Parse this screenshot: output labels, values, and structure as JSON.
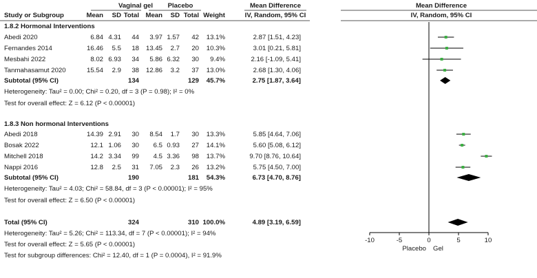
{
  "chart_data": {
    "type": "forest",
    "header": {
      "group_experimental": "Vaginal gel",
      "group_control": "Placebo",
      "study_col": "Study or Subgroup",
      "mean": "Mean",
      "sd": "SD",
      "total": "Total",
      "weight": "Weight",
      "md_title": "Mean Difference",
      "md_method": "IV, Random, 95% CI"
    },
    "subgroups": [
      {
        "title": "1.8.2 Hormonal Interventions",
        "studies": [
          {
            "name": "Abedi 2020",
            "e_mean": "6.84",
            "e_sd": "4.31",
            "e_total": "44",
            "c_mean": "3.97",
            "c_sd": "1.57",
            "c_total": "42",
            "weight": "13.1%",
            "ci_text": "2.87 [1.51, 4.23]",
            "md": 2.87,
            "lower": 1.51,
            "upper": 4.23
          },
          {
            "name": "Fernandes 2014",
            "e_mean": "16.46",
            "e_sd": "5.5",
            "e_total": "18",
            "c_mean": "13.45",
            "c_sd": "2.7",
            "c_total": "20",
            "weight": "10.3%",
            "ci_text": "3.01 [0.21, 5.81]",
            "md": 3.01,
            "lower": 0.21,
            "upper": 5.81
          },
          {
            "name": "Mesbahi 2022",
            "e_mean": "8.02",
            "e_sd": "6.93",
            "e_total": "34",
            "c_mean": "5.86",
            "c_sd": "6.32",
            "c_total": "30",
            "weight": "9.4%",
            "ci_text": "2.16 [-1.09, 5.41]",
            "md": 2.16,
            "lower": -1.09,
            "upper": 5.41
          },
          {
            "name": "Tanmahasamut 2020",
            "e_mean": "15.54",
            "e_sd": "2.9",
            "e_total": "38",
            "c_mean": "12.86",
            "c_sd": "3.2",
            "c_total": "37",
            "weight": "13.0%",
            "ci_text": "2.68 [1.30, 4.06]",
            "md": 2.68,
            "lower": 1.3,
            "upper": 4.06
          }
        ],
        "subtotal": {
          "label": "Subtotal (95% CI)",
          "e_total": "134",
          "c_total": "129",
          "weight": "45.7%",
          "ci_text": "2.75 [1.87, 3.64]",
          "md": 2.75,
          "lower": 1.87,
          "upper": 3.64
        },
        "heterogeneity": "Heterogeneity: Tau² = 0.00; Chi² = 0.20, df = 3 (P = 0.98); I² = 0%",
        "overall_effect": "Test for overall effect: Z = 6.12 (P < 0.00001)"
      },
      {
        "title": "1.8.3 Non hormonal Interventions",
        "studies": [
          {
            "name": "Abedi 2018",
            "e_mean": "14.39",
            "e_sd": "2.91",
            "e_total": "30",
            "c_mean": "8.54",
            "c_sd": "1.7",
            "c_total": "30",
            "weight": "13.3%",
            "ci_text": "5.85 [4.64, 7.06]",
            "md": 5.85,
            "lower": 4.64,
            "upper": 7.06
          },
          {
            "name": "Bosak 2022",
            "e_mean": "12.1",
            "e_sd": "1.06",
            "e_total": "30",
            "c_mean": "6.5",
            "c_sd": "0.93",
            "c_total": "27",
            "weight": "14.1%",
            "ci_text": "5.60 [5.08, 6.12]",
            "md": 5.6,
            "lower": 5.08,
            "upper": 6.12
          },
          {
            "name": "Mitchell 2018",
            "e_mean": "14.2",
            "e_sd": "3.34",
            "e_total": "99",
            "c_mean": "4.5",
            "c_sd": "3.36",
            "c_total": "98",
            "weight": "13.7%",
            "ci_text": "9.70 [8.76, 10.64]",
            "md": 9.7,
            "lower": 8.76,
            "upper": 10.64
          },
          {
            "name": "Nappi 2016",
            "e_mean": "12.8",
            "e_sd": "2.5",
            "e_total": "31",
            "c_mean": "7.05",
            "c_sd": "2.3",
            "c_total": "26",
            "weight": "13.2%",
            "ci_text": "5.75 [4.50, 7.00]",
            "md": 5.75,
            "lower": 4.5,
            "upper": 7.0
          }
        ],
        "subtotal": {
          "label": "Subtotal (95% CI)",
          "e_total": "190",
          "c_total": "181",
          "weight": "54.3%",
          "ci_text": "6.73 [4.70, 8.76]",
          "md": 6.73,
          "lower": 4.7,
          "upper": 8.76
        },
        "heterogeneity": "Heterogeneity: Tau² = 4.03; Chi² = 58.84, df = 3 (P < 0.00001); I² = 95%",
        "overall_effect": "Test for overall effect: Z = 6.50 (P < 0.00001)"
      }
    ],
    "total": {
      "label": "Total (95% CI)",
      "e_total": "324",
      "c_total": "310",
      "weight": "100.0%",
      "ci_text": "4.89 [3.19, 6.59]",
      "md": 4.89,
      "lower": 3.19,
      "upper": 6.59,
      "heterogeneity": "Heterogeneity: Tau² = 5.26; Chi² = 113.34, df = 7 (P < 0.00001); I² = 94%",
      "overall_effect": "Test for overall effect: Z = 5.65 (P < 0.00001)",
      "subgroup_differences": "Test for subgroup differences: Chi² = 12.40, df = 1 (P = 0.0004), I² = 91.9%"
    },
    "axis": {
      "xlim": [
        -10,
        10
      ],
      "ticks": [
        -10,
        -5,
        0,
        5,
        10
      ],
      "favours_left": "Placebo",
      "favours_right": "Gel"
    },
    "colors": {
      "study_marker": "#3cb043",
      "diamond": "#000000",
      "line": "#000000",
      "header_rule": "#555555"
    }
  }
}
